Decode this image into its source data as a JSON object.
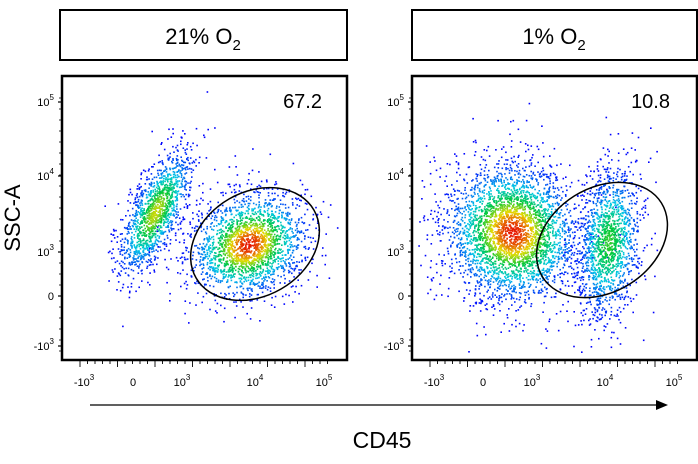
{
  "chart_data": [
    {
      "type": "scatter",
      "condition_label": {
        "prefix": "21% O",
        "subscript": "2"
      },
      "gate_value": "67.2",
      "ylabel": "SSC-A",
      "x_tick_labels": [
        {
          "base": "-10",
          "exp": "3"
        },
        {
          "base": "0",
          "exp": ""
        },
        {
          "base": "10",
          "exp": "3"
        },
        {
          "base": "10",
          "exp": "4"
        },
        {
          "base": "10",
          "exp": "5"
        }
      ],
      "y_tick_labels": [
        {
          "base": "10",
          "exp": "5"
        },
        {
          "base": "10",
          "exp": "4"
        },
        {
          "base": "10",
          "exp": "3"
        },
        {
          "base": "0",
          "exp": ""
        },
        {
          "base": "-10",
          "exp": "3"
        }
      ],
      "populations": [
        {
          "name_hidden": "",
          "x_center": 0.3,
          "y_center": 3500,
          "density": "high",
          "color_peak": "#00c060"
        },
        {
          "name_hidden": "",
          "x_center": 7000,
          "y_center": 1000,
          "density": "very-high",
          "color_peak": "#e02000"
        }
      ],
      "gate": {
        "shape": "ellipse",
        "x_center": 5500,
        "y_center": 1100
      }
    },
    {
      "type": "scatter",
      "condition_label": {
        "prefix": "1% O",
        "subscript": "2"
      },
      "gate_value": "10.8",
      "ylabel": "",
      "x_tick_labels": [
        {
          "base": "-10",
          "exp": "3"
        },
        {
          "base": "0",
          "exp": ""
        },
        {
          "base": "10",
          "exp": "3"
        },
        {
          "base": "10",
          "exp": "4"
        },
        {
          "base": "10",
          "exp": "5"
        }
      ],
      "y_tick_labels": [
        {
          "base": "10",
          "exp": "5"
        },
        {
          "base": "10",
          "exp": "4"
        },
        {
          "base": "10",
          "exp": "3"
        },
        {
          "base": "0",
          "exp": ""
        },
        {
          "base": "-10",
          "exp": "3"
        }
      ],
      "populations": [
        {
          "name_hidden": "",
          "x_center": 400,
          "y_center": 1300,
          "density": "very-high",
          "color_peak": "#e02000"
        },
        {
          "name_hidden": "",
          "x_center": 12000,
          "y_center": 500,
          "density": "medium",
          "color_peak": "#20b0ff"
        }
      ],
      "gate": {
        "shape": "ellipse",
        "x_center": 4500,
        "y_center": 1000
      }
    }
  ],
  "shared_xlabel": "CD45",
  "colors": {
    "axis": "#000000",
    "density_low": "#0000ff",
    "density_mid": "#00d0d0",
    "density_high": "#00c000",
    "density_peak": "#ff0000"
  }
}
